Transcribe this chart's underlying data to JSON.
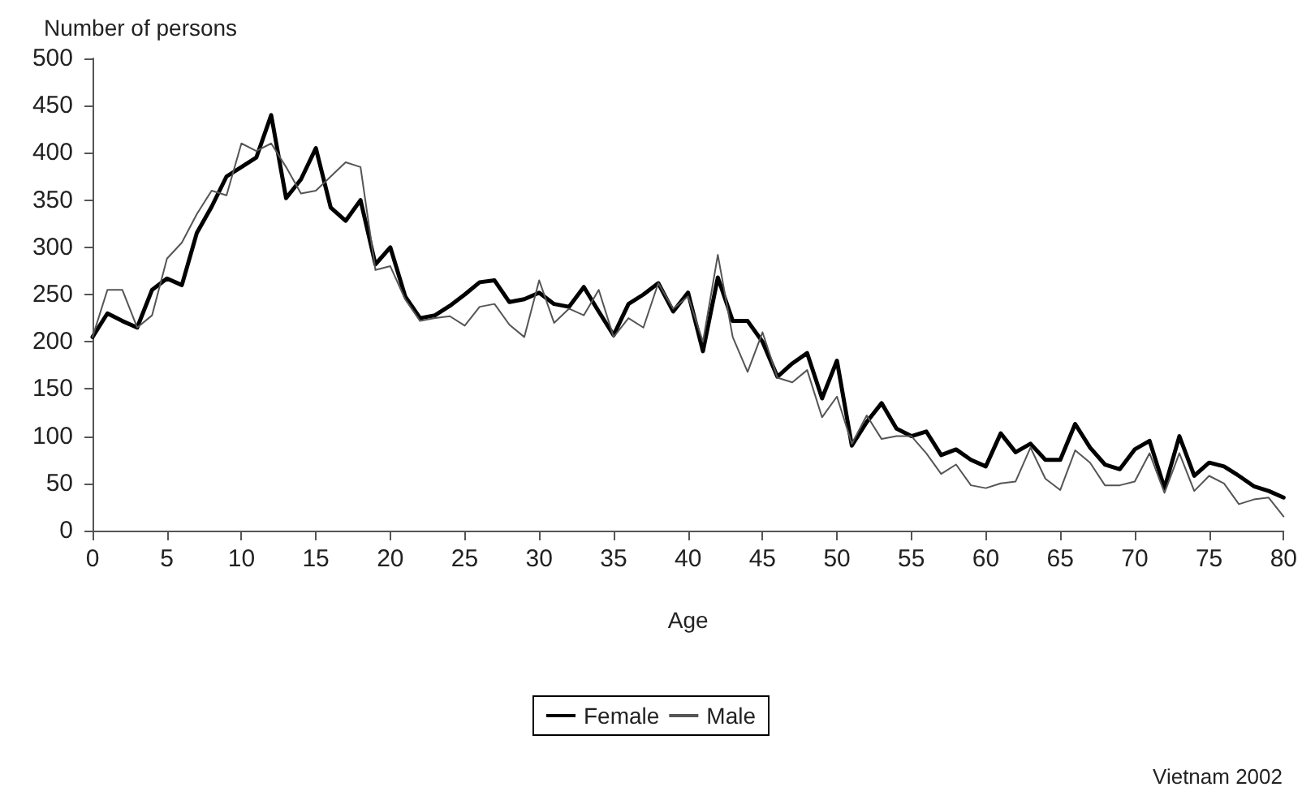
{
  "chart_data": {
    "type": "line",
    "ylabel": "Number of persons",
    "xlabel": "Age",
    "annotations": [
      "Vietnam 2002"
    ],
    "x": [
      0,
      1,
      2,
      3,
      4,
      5,
      6,
      7,
      8,
      9,
      10,
      11,
      12,
      13,
      14,
      15,
      16,
      17,
      18,
      19,
      20,
      21,
      22,
      23,
      24,
      25,
      26,
      27,
      28,
      29,
      30,
      31,
      32,
      33,
      34,
      35,
      36,
      37,
      38,
      39,
      40,
      41,
      42,
      43,
      44,
      45,
      46,
      47,
      48,
      49,
      50,
      51,
      52,
      53,
      54,
      55,
      56,
      57,
      58,
      59,
      60,
      61,
      62,
      63,
      64,
      65,
      66,
      67,
      68,
      69,
      70,
      71,
      72,
      73,
      74,
      75,
      76,
      77,
      78,
      79,
      80
    ],
    "series": [
      {
        "name": "Female",
        "color": "#000000",
        "values": [
          205,
          230,
          222,
          215,
          255,
          267,
          260,
          315,
          343,
          375,
          385,
          395,
          440,
          352,
          372,
          405,
          342,
          328,
          350,
          282,
          300,
          248,
          225,
          228,
          238,
          250,
          263,
          265,
          242,
          245,
          252,
          240,
          237,
          258,
          232,
          207,
          240,
          250,
          262,
          232,
          252,
          190,
          268,
          222,
          222,
          200,
          163,
          177,
          188,
          140,
          180,
          90,
          115,
          135,
          108,
          100,
          105,
          80,
          86,
          75,
          68,
          103,
          83,
          92,
          75,
          75,
          113,
          88,
          70,
          65,
          86,
          95,
          45,
          100,
          58,
          72,
          68,
          58,
          47,
          42,
          35
        ]
      },
      {
        "name": "Male",
        "color": "#555555",
        "values": [
          205,
          255,
          255,
          215,
          228,
          288,
          305,
          335,
          360,
          355,
          410,
          402,
          410,
          385,
          357,
          360,
          375,
          390,
          385,
          276,
          280,
          245,
          222,
          225,
          227,
          217,
          237,
          240,
          218,
          205,
          265,
          220,
          235,
          228,
          255,
          205,
          225,
          215,
          262,
          235,
          248,
          200,
          292,
          205,
          168,
          210,
          162,
          157,
          170,
          120,
          142,
          92,
          122,
          97,
          100,
          100,
          82,
          60,
          70,
          48,
          45,
          50,
          52,
          88,
          55,
          43,
          85,
          72,
          48,
          48,
          52,
          82,
          40,
          82,
          42,
          58,
          50,
          28,
          33,
          35,
          15
        ]
      }
    ],
    "xlim": [
      0,
      80
    ],
    "xticks": [
      0,
      5,
      10,
      15,
      20,
      25,
      30,
      35,
      40,
      45,
      50,
      55,
      60,
      65,
      70,
      75,
      80
    ],
    "ylim": [
      0,
      500
    ],
    "yticks": [
      0,
      50,
      100,
      150,
      200,
      250,
      300,
      350,
      400,
      450,
      500
    ],
    "grid": false,
    "legend": "bottom",
    "marker": "none",
    "line_style": "solid"
  }
}
